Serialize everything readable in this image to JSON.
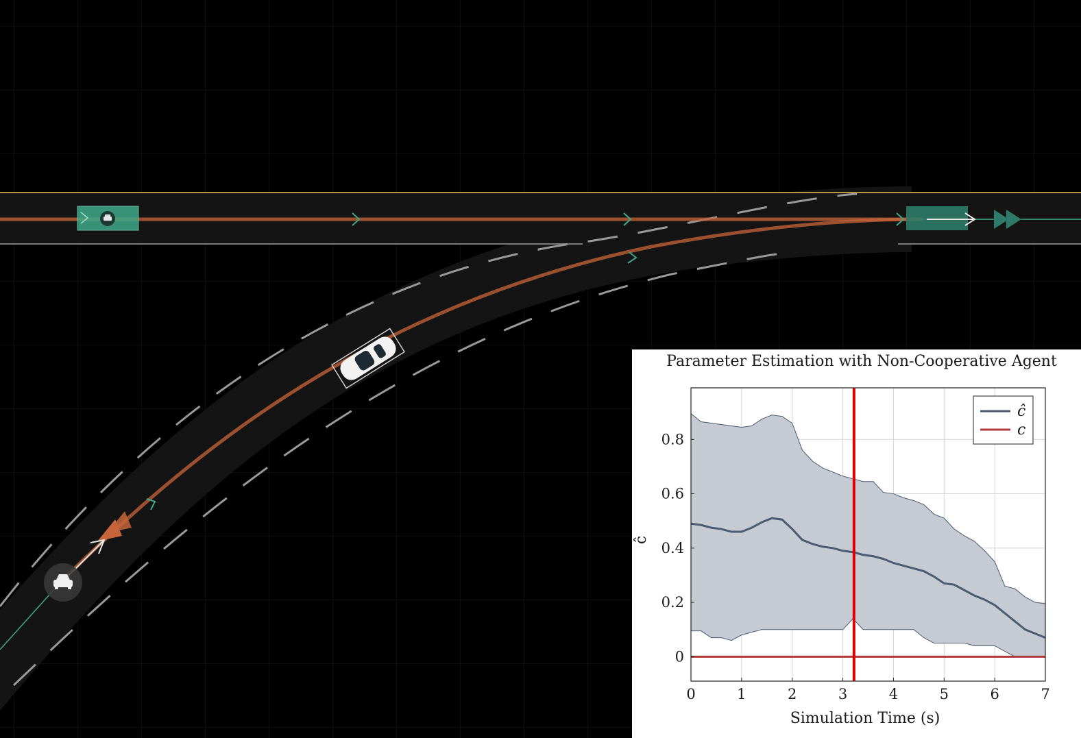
{
  "chart_data": {
    "type": "line",
    "title": "Parameter Estimation with Non-Cooperative Agent",
    "xlabel": "Simulation Time (s)",
    "ylabel": "ĉ",
    "xlim": [
      0,
      7
    ],
    "ylim": [
      -0.09,
      0.99
    ],
    "xticks": [
      0,
      1,
      2,
      3,
      4,
      5,
      6,
      7
    ],
    "xtick_labels": [
      "0",
      "1",
      "2",
      "3",
      "4",
      "5",
      "6",
      "7"
    ],
    "yticks": [
      0,
      0.2,
      0.4,
      0.6,
      0.8
    ],
    "ytick_labels": [
      "0",
      "0.2",
      "0.4",
      "0.6",
      "0.8"
    ],
    "grid": true,
    "legend": "top-right",
    "current_time": 3.22,
    "current_time_color": "#e00000",
    "series": [
      {
        "name": "ĉ",
        "color": "#4a5a70",
        "x": [
          0,
          0.2,
          0.4,
          0.6,
          0.8,
          1.0,
          1.2,
          1.4,
          1.6,
          1.8,
          2.0,
          2.2,
          2.4,
          2.6,
          2.8,
          3.0,
          3.2,
          3.4,
          3.6,
          3.8,
          4.0,
          4.2,
          4.4,
          4.6,
          4.8,
          5.0,
          5.2,
          5.4,
          5.6,
          5.8,
          6.0,
          6.2,
          6.4,
          6.6,
          6.8,
          7.0
        ],
        "y": [
          0.49,
          0.485,
          0.475,
          0.47,
          0.46,
          0.46,
          0.475,
          0.495,
          0.51,
          0.505,
          0.47,
          0.43,
          0.415,
          0.405,
          0.4,
          0.39,
          0.385,
          0.375,
          0.37,
          0.36,
          0.345,
          0.335,
          0.325,
          0.315,
          0.295,
          0.27,
          0.265,
          0.245,
          0.225,
          0.21,
          0.19,
          0.16,
          0.13,
          0.1,
          0.085,
          0.07
        ],
        "band_upper": [
          0.895,
          0.865,
          0.86,
          0.855,
          0.85,
          0.845,
          0.85,
          0.875,
          0.89,
          0.885,
          0.86,
          0.76,
          0.72,
          0.695,
          0.68,
          0.665,
          0.655,
          0.645,
          0.645,
          0.605,
          0.6,
          0.585,
          0.575,
          0.56,
          0.525,
          0.51,
          0.47,
          0.445,
          0.425,
          0.39,
          0.35,
          0.26,
          0.25,
          0.22,
          0.2,
          0.195
        ],
        "band_lower": [
          0.095,
          0.095,
          0.07,
          0.07,
          0.06,
          0.08,
          0.09,
          0.1,
          0.1,
          0.1,
          0.1,
          0.1,
          0.1,
          0.1,
          0.1,
          0.1,
          0.14,
          0.1,
          0.1,
          0.1,
          0.1,
          0.1,
          0.1,
          0.07,
          0.05,
          0.05,
          0.05,
          0.05,
          0.04,
          0.04,
          0.04,
          0.02,
          0.0,
          0.0,
          0.0,
          0.0
        ]
      },
      {
        "name": "c",
        "color": "#b03a3a",
        "x": [
          0,
          7
        ],
        "y": [
          0,
          0
        ]
      }
    ]
  },
  "scene": {
    "colors": {
      "background": "#000000",
      "road": "#141414",
      "road_edge_top": "#b59a3a",
      "road_edge_bottom": "#7a7a7a",
      "lane_dash": "#9a9a9a",
      "trajectory": "#c8643a",
      "agent_box": "#3fa88a",
      "goal_box": "#2f7a68"
    },
    "icons": [
      "car-icon",
      "car-icon",
      "car-icon"
    ]
  }
}
